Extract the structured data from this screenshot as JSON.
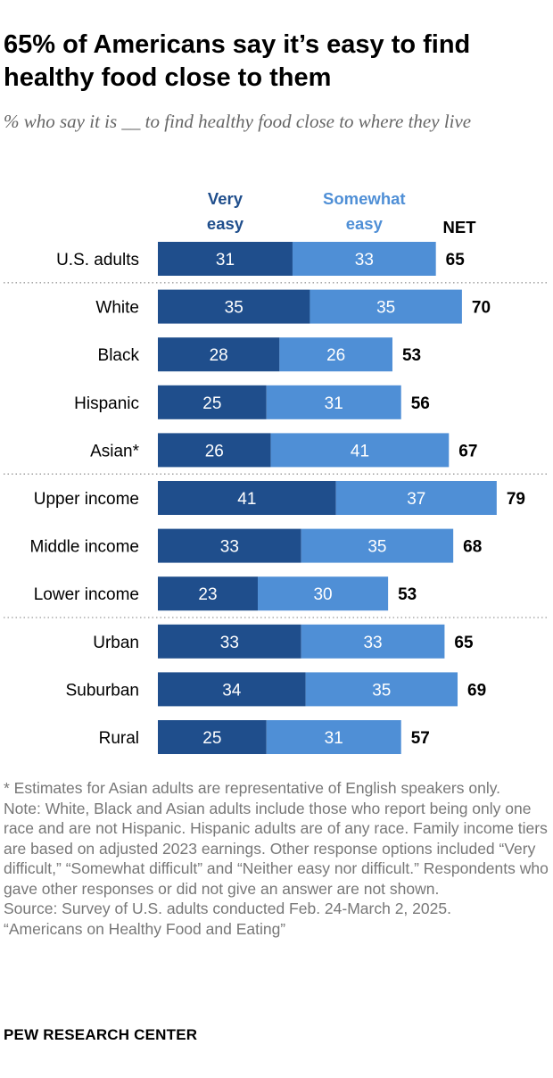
{
  "title": "65% of Americans say it’s easy to find healthy food close to them",
  "subtitle": "% who say it is __ to find healthy food close to where they live",
  "chart_data": {
    "type": "bar",
    "orientation": "horizontal",
    "stacked": true,
    "categories": [
      "U.S. adults",
      "White",
      "Black",
      "Hispanic",
      "Asian*",
      "Upper income",
      "Middle income",
      "Lower income",
      "Urban",
      "Suburban",
      "Rural"
    ],
    "series": [
      {
        "name": "Very easy",
        "color": "#1f4e8c",
        "values": [
          31,
          35,
          28,
          25,
          26,
          41,
          33,
          23,
          33,
          34,
          25
        ]
      },
      {
        "name": "Somewhat easy",
        "color": "#4f8fd6",
        "values": [
          33,
          35,
          26,
          31,
          41,
          37,
          35,
          30,
          33,
          35,
          31
        ]
      }
    ],
    "net_label": "NET",
    "net": [
      65,
      70,
      53,
      56,
      67,
      79,
      68,
      53,
      65,
      69,
      57
    ],
    "group_separators_after": [
      0,
      4,
      7
    ],
    "legend_labels": [
      "Very easy",
      "Somewhat easy"
    ],
    "xlim": [
      0,
      100
    ]
  },
  "notes": {
    "asterisk": "* Estimates for Asian adults are representative of English speakers only.",
    "note": "Note: White, Black and Asian adults include those who report being only one race and are not Hispanic. Hispanic adults are of any race. Family income tiers are based on adjusted 2023 earnings. Other response options included “Very difficult,” “Somewhat difficult” and “Neither easy nor difficult.” Respondents who gave other responses or did not give an answer are not shown.",
    "source": "Source: Survey of U.S. adults conducted Feb. 24-March 2, 2025.",
    "report": "“Americans on Healthy Food and Eating”"
  },
  "brand": "PEW RESEARCH CENTER"
}
